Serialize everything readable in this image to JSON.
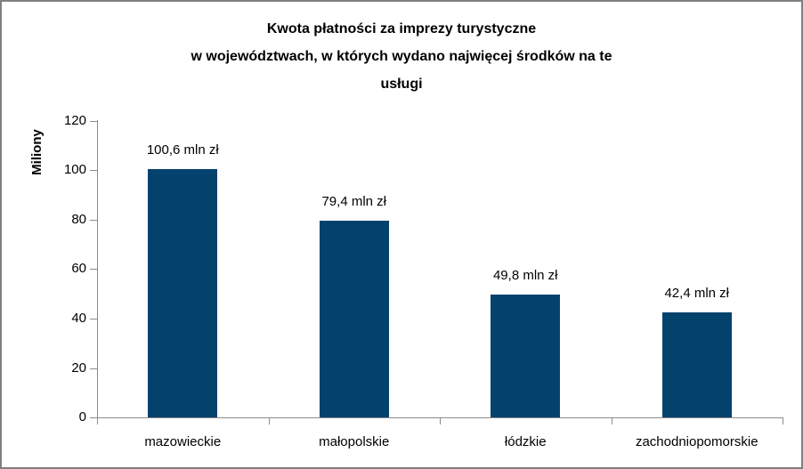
{
  "chart_data": {
    "type": "bar",
    "title": "Kwota płatności za imprezy turystyczne w województwach, w których wydano najwięcej środków na te usługi",
    "title_lines": [
      "Kwota płatności za imprezy turystyczne",
      "w województwach, w których wydano najwięcej środków na te",
      "usługi"
    ],
    "ylabel": "Miliony",
    "xlabel": "",
    "categories": [
      "mazowieckie",
      "małopolskie",
      "łódzkie",
      "zachodniopomorskie"
    ],
    "values": [
      100.6,
      79.4,
      49.8,
      42.4
    ],
    "data_labels": [
      "100,6 mln zł",
      "79,4 mln zł",
      "49,8 mln zł",
      "42,4 mln zł"
    ],
    "ylim": [
      0,
      120
    ],
    "yticks": [
      0,
      20,
      40,
      60,
      80,
      100,
      120
    ],
    "grid": "off",
    "legend": "none",
    "bar_color": "#04426E",
    "axis_color": "#8C8C8C",
    "frame_border_color": "#808080",
    "text_color": "#000000"
  }
}
